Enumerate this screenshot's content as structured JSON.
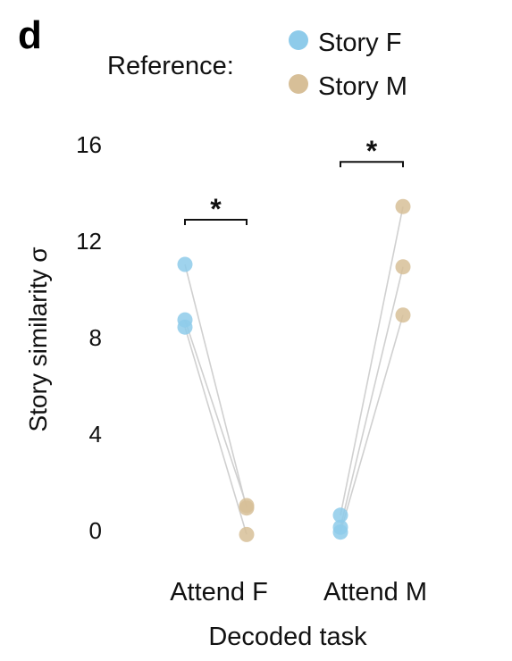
{
  "panel_label": "d",
  "legend": {
    "title": "Reference:",
    "items": [
      {
        "label": "Story F",
        "color": "#8ecbea"
      },
      {
        "label": "Story M",
        "color": "#d7bf98"
      }
    ]
  },
  "chart_data": {
    "type": "scatter",
    "xlabel": "Decoded task",
    "ylabel": "Story similarity σ",
    "ylim": [
      -1,
      17
    ],
    "yticks": [
      0,
      4,
      8,
      12,
      16
    ],
    "categories": [
      "Attend F",
      "Attend M"
    ],
    "colors": {
      "Story F": "#8ecbea",
      "Story M": "#d7bf98",
      "pair_line": "#d0d0d0"
    },
    "significance": [
      "*",
      "*"
    ],
    "pairs": [
      {
        "task": "Attend F",
        "subjects": [
          {
            "story_f": 11.0,
            "story_m": 0.9
          },
          {
            "story_f": 8.7,
            "story_m": 1.0
          },
          {
            "story_f": 8.4,
            "story_m": -0.2
          }
        ]
      },
      {
        "task": "Attend M",
        "subjects": [
          {
            "story_f": 0.6,
            "story_m": 13.4
          },
          {
            "story_f": 0.1,
            "story_m": 10.9
          },
          {
            "story_f": -0.1,
            "story_m": 8.9
          }
        ]
      }
    ]
  }
}
